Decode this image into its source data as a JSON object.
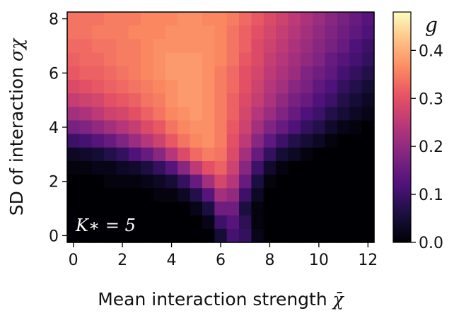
{
  "chart_data": {
    "type": "heatmap",
    "xlabel": "Mean interaction strength",
    "xlabel_symbol": "χ̄",
    "ylabel": "SD of interaction",
    "ylabel_symbol": "σχ",
    "x_ticks": [
      0,
      2,
      4,
      6,
      8,
      10,
      12
    ],
    "y_ticks": [
      0,
      2,
      4,
      6,
      8
    ],
    "xlim": [
      -0.25,
      12.25
    ],
    "ylim": [
      -0.25,
      8.25
    ],
    "x_step": 0.5,
    "y_step": 0.5,
    "colorbar": {
      "label": "g",
      "ticks": [
        "0.0",
        "0.1",
        "0.2",
        "0.3",
        "0.4"
      ],
      "tick_values": [
        0.0,
        0.1,
        0.2,
        0.3,
        0.4
      ],
      "range": [
        0.0,
        0.48
      ],
      "colormap": "magma"
    },
    "annotation": "K∗ = 5",
    "description_values": "g values on grid x=0..12 step 0.5, y=0..8 step 0.5; rows listed from y=8 (top) down to y=0",
    "values": [
      [
        0.34,
        0.34,
        0.34,
        0.35,
        0.35,
        0.35,
        0.36,
        0.36,
        0.36,
        0.37,
        0.37,
        0.36,
        0.36,
        0.35,
        0.33,
        0.31,
        0.29,
        0.27,
        0.25,
        0.23,
        0.21,
        0.19,
        0.17,
        0.15,
        0.13
      ],
      [
        0.34,
        0.34,
        0.35,
        0.35,
        0.35,
        0.36,
        0.36,
        0.36,
        0.37,
        0.37,
        0.37,
        0.37,
        0.36,
        0.34,
        0.32,
        0.3,
        0.28,
        0.26,
        0.24,
        0.22,
        0.2,
        0.18,
        0.16,
        0.14,
        0.12
      ],
      [
        0.33,
        0.33,
        0.34,
        0.34,
        0.35,
        0.35,
        0.36,
        0.37,
        0.37,
        0.37,
        0.37,
        0.37,
        0.36,
        0.34,
        0.32,
        0.29,
        0.27,
        0.25,
        0.23,
        0.21,
        0.19,
        0.17,
        0.15,
        0.12,
        0.1
      ],
      [
        0.32,
        0.33,
        0.33,
        0.34,
        0.35,
        0.35,
        0.36,
        0.37,
        0.38,
        0.38,
        0.38,
        0.37,
        0.36,
        0.34,
        0.31,
        0.29,
        0.26,
        0.24,
        0.22,
        0.2,
        0.18,
        0.15,
        0.13,
        0.11,
        0.09
      ],
      [
        0.31,
        0.32,
        0.32,
        0.33,
        0.34,
        0.35,
        0.36,
        0.37,
        0.38,
        0.38,
        0.38,
        0.37,
        0.35,
        0.33,
        0.3,
        0.28,
        0.25,
        0.23,
        0.21,
        0.18,
        0.16,
        0.14,
        0.11,
        0.09,
        0.07
      ],
      [
        0.29,
        0.3,
        0.31,
        0.32,
        0.33,
        0.34,
        0.35,
        0.36,
        0.37,
        0.38,
        0.38,
        0.37,
        0.35,
        0.33,
        0.3,
        0.27,
        0.24,
        0.22,
        0.19,
        0.17,
        0.14,
        0.12,
        0.09,
        0.07,
        0.05
      ],
      [
        0.26,
        0.27,
        0.28,
        0.3,
        0.31,
        0.32,
        0.34,
        0.35,
        0.37,
        0.38,
        0.38,
        0.37,
        0.35,
        0.32,
        0.29,
        0.26,
        0.23,
        0.2,
        0.17,
        0.15,
        0.12,
        0.1,
        0.07,
        0.05,
        0.03
      ],
      [
        0.22,
        0.23,
        0.25,
        0.27,
        0.28,
        0.3,
        0.32,
        0.34,
        0.36,
        0.37,
        0.38,
        0.37,
        0.35,
        0.32,
        0.28,
        0.24,
        0.21,
        0.18,
        0.15,
        0.12,
        0.1,
        0.07,
        0.05,
        0.03,
        0.02
      ],
      [
        0.17,
        0.18,
        0.2,
        0.22,
        0.24,
        0.26,
        0.29,
        0.31,
        0.34,
        0.36,
        0.37,
        0.37,
        0.35,
        0.31,
        0.27,
        0.22,
        0.18,
        0.15,
        0.12,
        0.09,
        0.07,
        0.04,
        0.02,
        0.01,
        0.0
      ],
      [
        0.1,
        0.11,
        0.13,
        0.15,
        0.18,
        0.21,
        0.24,
        0.27,
        0.31,
        0.34,
        0.36,
        0.37,
        0.35,
        0.3,
        0.25,
        0.19,
        0.14,
        0.1,
        0.07,
        0.05,
        0.03,
        0.01,
        0.0,
        0.0,
        0.0
      ],
      [
        0.03,
        0.04,
        0.05,
        0.07,
        0.09,
        0.12,
        0.15,
        0.19,
        0.24,
        0.29,
        0.33,
        0.35,
        0.34,
        0.29,
        0.22,
        0.15,
        0.09,
        0.05,
        0.03,
        0.01,
        0.0,
        0.0,
        0.0,
        0.0,
        0.0
      ],
      [
        0.01,
        0.01,
        0.02,
        0.02,
        0.03,
        0.04,
        0.06,
        0.09,
        0.13,
        0.19,
        0.25,
        0.3,
        0.32,
        0.27,
        0.19,
        0.1,
        0.04,
        0.01,
        0.0,
        0.0,
        0.0,
        0.0,
        0.0,
        0.0,
        0.0
      ],
      [
        0.0,
        0.0,
        0.0,
        0.01,
        0.01,
        0.01,
        0.02,
        0.03,
        0.05,
        0.09,
        0.15,
        0.22,
        0.28,
        0.24,
        0.15,
        0.06,
        0.01,
        0.0,
        0.0,
        0.0,
        0.0,
        0.0,
        0.0,
        0.0,
        0.0
      ],
      [
        0.0,
        0.0,
        0.0,
        0.0,
        0.0,
        0.0,
        0.0,
        0.01,
        0.01,
        0.03,
        0.07,
        0.13,
        0.22,
        0.2,
        0.1,
        0.03,
        0.0,
        0.0,
        0.0,
        0.0,
        0.0,
        0.0,
        0.0,
        0.0,
        0.0
      ],
      [
        0.0,
        0.0,
        0.0,
        0.0,
        0.0,
        0.0,
        0.0,
        0.0,
        0.0,
        0.0,
        0.02,
        0.06,
        0.16,
        0.16,
        0.06,
        0.01,
        0.0,
        0.0,
        0.0,
        0.0,
        0.0,
        0.0,
        0.0,
        0.0,
        0.0
      ],
      [
        0.0,
        0.0,
        0.0,
        0.0,
        0.0,
        0.0,
        0.0,
        0.0,
        0.0,
        0.0,
        0.0,
        0.02,
        0.1,
        0.13,
        0.08,
        0.01,
        0.0,
        0.0,
        0.0,
        0.0,
        0.0,
        0.0,
        0.0,
        0.0,
        0.0
      ],
      [
        0.0,
        0.0,
        0.0,
        0.0,
        0.0,
        0.0,
        0.0,
        0.0,
        0.0,
        0.0,
        0.0,
        0.0,
        0.05,
        0.11,
        0.09,
        0.02,
        0.0,
        0.0,
        0.0,
        0.0,
        0.0,
        0.0,
        0.0,
        0.0,
        0.0
      ]
    ]
  }
}
